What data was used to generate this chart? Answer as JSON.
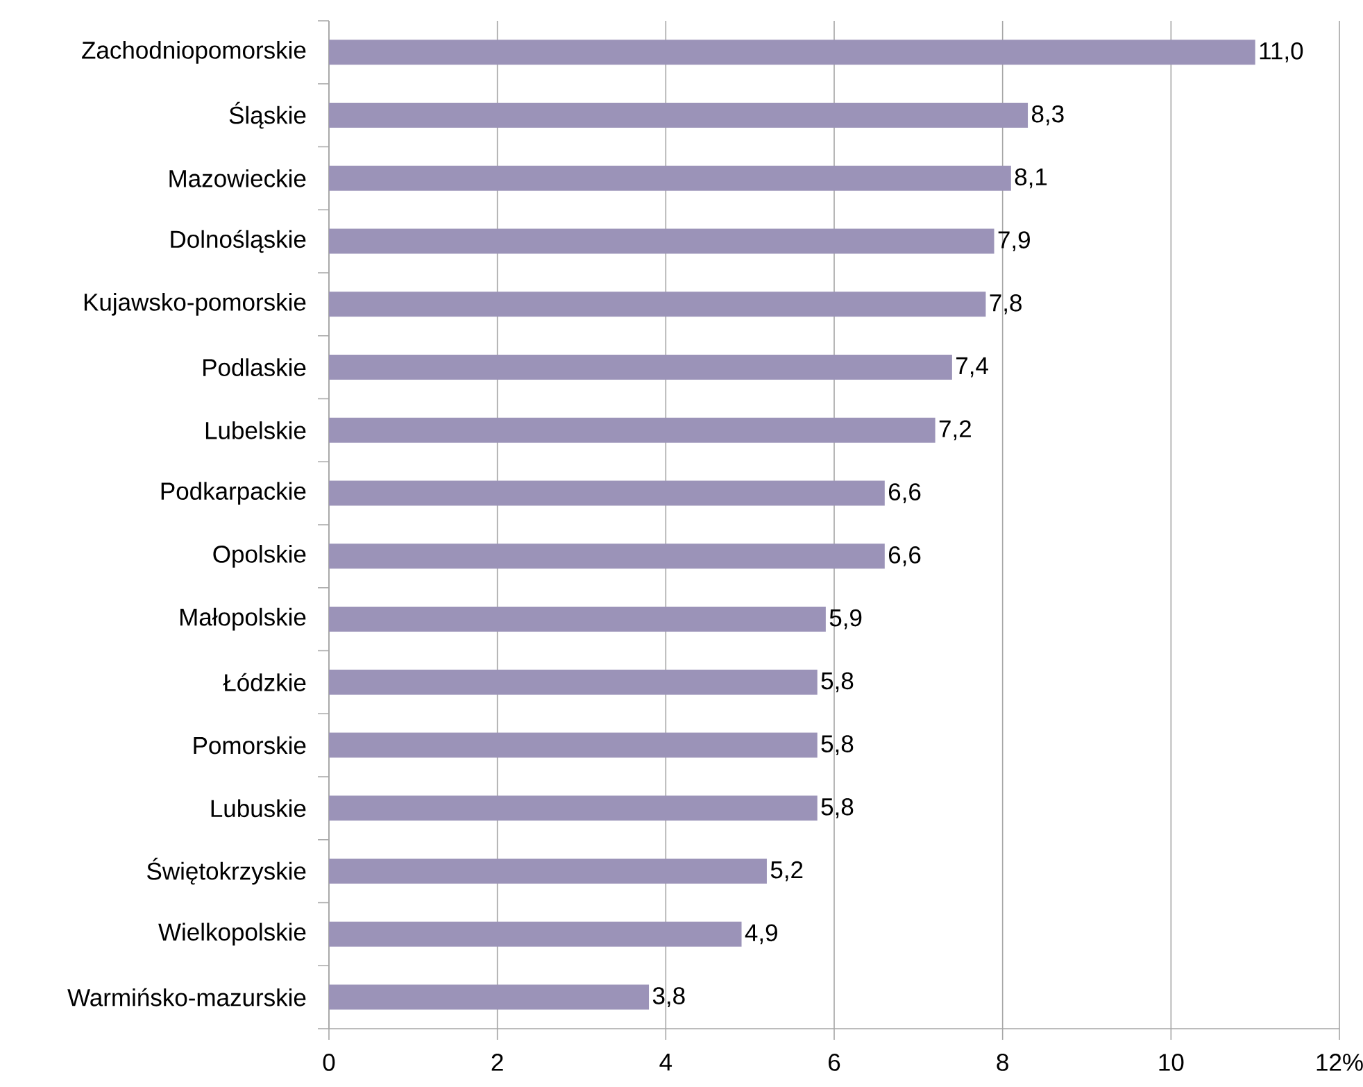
{
  "chart_data": {
    "type": "bar",
    "orientation": "horizontal",
    "categories": [
      "Zachodniopomorskie",
      "Śląskie",
      "Mazowieckie",
      "Dolnośląskie",
      "Kujawsko-pomorskie",
      "Podlaskie",
      "Lubelskie",
      "Podkarpackie",
      "Opolskie",
      "Małopolskie",
      "Łódzkie",
      "Pomorskie",
      "Lubuskie",
      "Świętokrzyskie",
      "Wielkopolskie",
      "Warmińsko-mazurskie"
    ],
    "values": [
      11.0,
      8.3,
      8.1,
      7.9,
      7.8,
      7.4,
      7.2,
      6.6,
      6.6,
      5.9,
      5.8,
      5.8,
      5.8,
      5.2,
      4.9,
      3.8
    ],
    "value_labels": [
      "11,0",
      "8,3",
      "8,1",
      "7,9",
      "7,8",
      "7,4",
      "7,2",
      "6,6",
      "6,6",
      "5,9",
      "5,8",
      "5,8",
      "5,8",
      "5,2",
      "4,9",
      "3,8"
    ],
    "color": "#9b93b8",
    "xlim": [
      0,
      12
    ],
    "xticks": [
      0,
      2,
      4,
      6,
      8,
      10,
      {
        "value": 12,
        "label": "12%"
      }
    ],
    "grid": "x"
  }
}
